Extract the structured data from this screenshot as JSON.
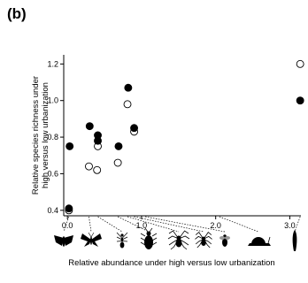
{
  "figure": {
    "panel_label": "(b)"
  },
  "chart_data": {
    "type": "scatter",
    "title": "",
    "xlabel": "Relative abundance under high versus low urbanization",
    "ylabel": "Relative species richness under high versus low urbanization",
    "xlim": [
      -0.05,
      3.15
    ],
    "ylim": [
      0.37,
      1.25
    ],
    "x_ticks": [
      0.0,
      1.0,
      2.0,
      3.0
    ],
    "x_tick_labels": [
      "0.0",
      "1.0",
      "2.0",
      "3.0"
    ],
    "y_ticks": [
      0.4,
      0.6,
      0.8,
      1.0,
      1.2
    ],
    "y_tick_labels": [
      "0.4",
      "0.6",
      "0.8",
      "1.0",
      "1.2"
    ],
    "grid": false,
    "legend": "none",
    "series": [
      {
        "marker": "filled-circle",
        "color": "#000000",
        "x": [
          0.02,
          0.03,
          0.3,
          0.41,
          0.41,
          0.69,
          0.82,
          0.9,
          3.14
        ],
        "y": [
          0.41,
          0.75,
          0.86,
          0.78,
          0.81,
          0.75,
          1.07,
          0.85,
          1.0
        ]
      },
      {
        "marker": "open-circle",
        "color": "#000000",
        "x": [
          0.02,
          0.29,
          0.4,
          0.41,
          0.68,
          0.81,
          0.9,
          3.14
        ],
        "y": [
          0.4,
          0.64,
          0.62,
          0.75,
          0.66,
          0.98,
          0.83,
          1.2
        ]
      }
    ],
    "taxa_icons": [
      {
        "name": "moth-icon",
        "x": 0.02
      },
      {
        "name": "butterfly-icon",
        "x": 0.29
      },
      {
        "name": "ant-icon",
        "x": 0.41
      },
      {
        "name": "beetle-icon",
        "x": 0.68
      },
      {
        "name": "spider-icon",
        "x": 0.81
      },
      {
        "name": "spider-small-icon",
        "x": 0.9
      },
      {
        "name": "bee-icon",
        "x": 1.05
      },
      {
        "name": "snail-icon",
        "x": 2.05
      },
      {
        "name": "slug-icon",
        "x": 3.14
      }
    ]
  }
}
